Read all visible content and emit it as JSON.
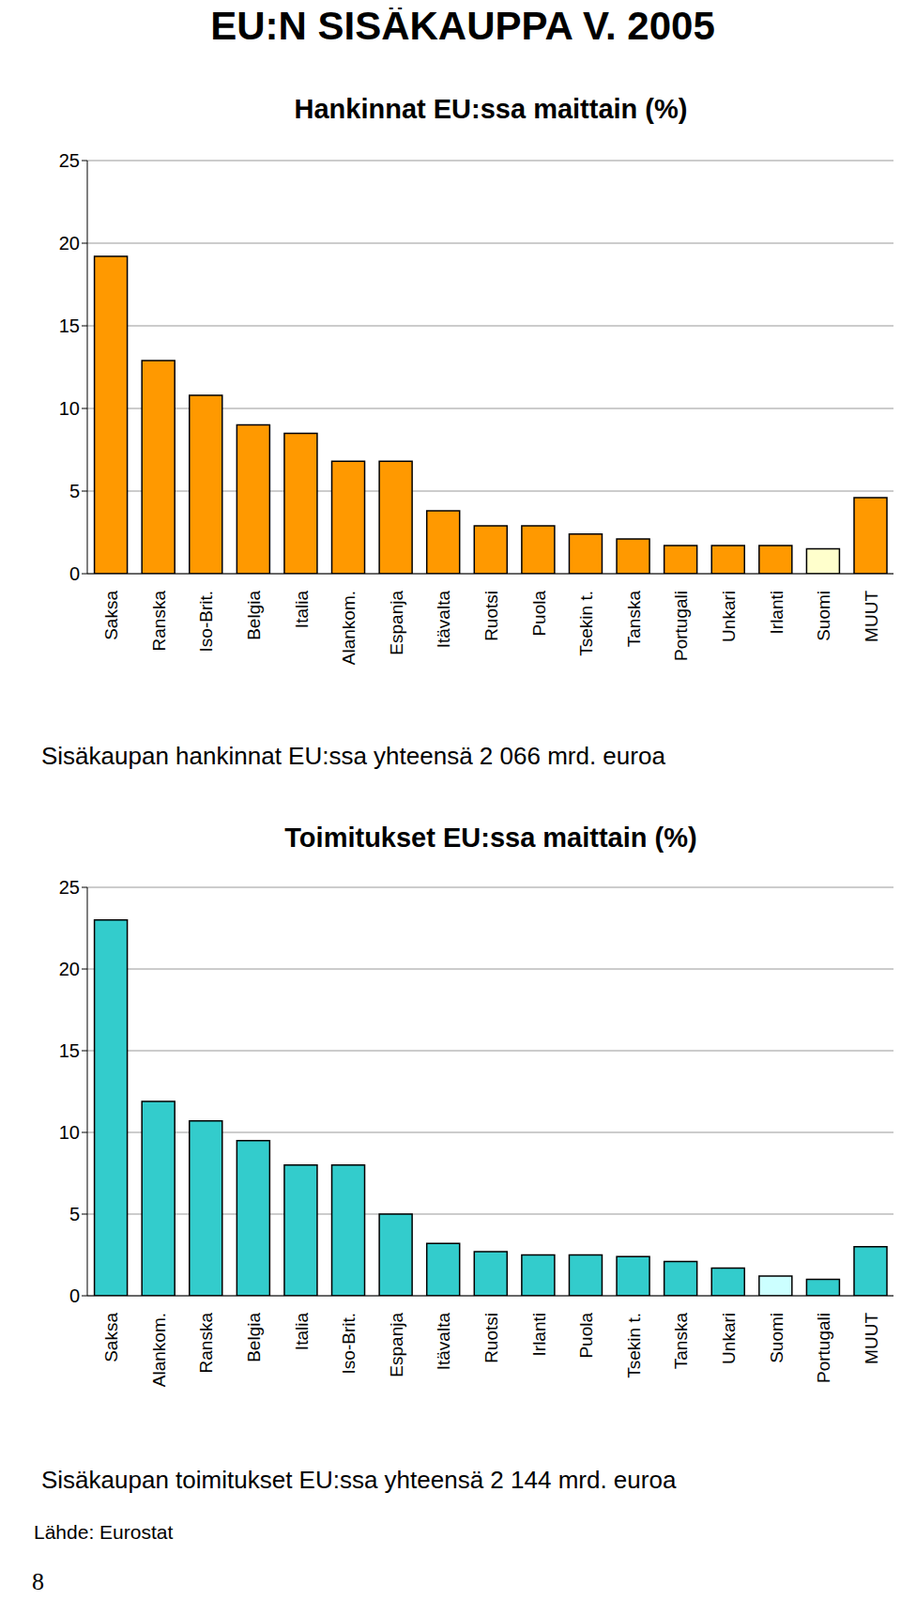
{
  "title": "EU:N SISÄKAUPPA V. 2005",
  "source": "Lähde: Eurostat",
  "page": 8,
  "chart_data": [
    {
      "type": "bar",
      "title": "Hankinnat EU:ssa maittain (%)",
      "annotations": [
        "Sisäkaupan hankinnat EU:ssa yhteensä 2 066 mrd. euroa"
      ],
      "categories": [
        "Saksa",
        "Ranska",
        "Iso-Brit.",
        "Belgia",
        "Italia",
        "Alankom.",
        "Espanja",
        "Itävalta",
        "Ruotsi",
        "Puola",
        "Tsekin t.",
        "Tanska",
        "Portugali",
        "Unkari",
        "Irlanti",
        "Suomi",
        "MUUT"
      ],
      "values": [
        19.2,
        12.9,
        10.8,
        9.0,
        8.5,
        6.8,
        6.8,
        3.8,
        2.9,
        2.9,
        2.4,
        2.1,
        1.7,
        1.7,
        1.7,
        1.5,
        4.6
      ],
      "colors": [
        "#ff9900",
        "#ff9900",
        "#ff9900",
        "#ff9900",
        "#ff9900",
        "#ff9900",
        "#ff9900",
        "#ff9900",
        "#ff9900",
        "#ff9900",
        "#ff9900",
        "#ff9900",
        "#ff9900",
        "#ff9900",
        "#ff9900",
        "#ffffcc",
        "#ff9900"
      ],
      "ylim": [
        0,
        25
      ],
      "yticks": [
        0,
        5,
        10,
        15,
        20,
        25
      ],
      "grid": true
    },
    {
      "type": "bar",
      "title": "Toimitukset EU:ssa maittain (%)",
      "annotations": [
        "Sisäkaupan toimitukset EU:ssa yhteensä 2 144 mrd. euroa"
      ],
      "categories": [
        "Saksa",
        "Alankom.",
        "Ranska",
        "Belgia",
        "Italia",
        "Iso-Brit.",
        "Espanja",
        "Itävalta",
        "Ruotsi",
        "Irlanti",
        "Puola",
        "Tsekin t.",
        "Tanska",
        "Unkari",
        "Suomi",
        "Portugali",
        "MUUT"
      ],
      "values": [
        23.0,
        11.9,
        10.7,
        9.5,
        8.0,
        8.0,
        5.0,
        3.2,
        2.7,
        2.5,
        2.5,
        2.4,
        2.1,
        1.7,
        1.2,
        1.0,
        3.0
      ],
      "colors": [
        "#33cccc",
        "#33cccc",
        "#33cccc",
        "#33cccc",
        "#33cccc",
        "#33cccc",
        "#33cccc",
        "#33cccc",
        "#33cccc",
        "#33cccc",
        "#33cccc",
        "#33cccc",
        "#33cccc",
        "#33cccc",
        "#ccffff",
        "#33cccc",
        "#33cccc"
      ],
      "ylim": [
        0,
        25
      ],
      "yticks": [
        0,
        5,
        10,
        15,
        20,
        25
      ],
      "grid": true
    }
  ]
}
